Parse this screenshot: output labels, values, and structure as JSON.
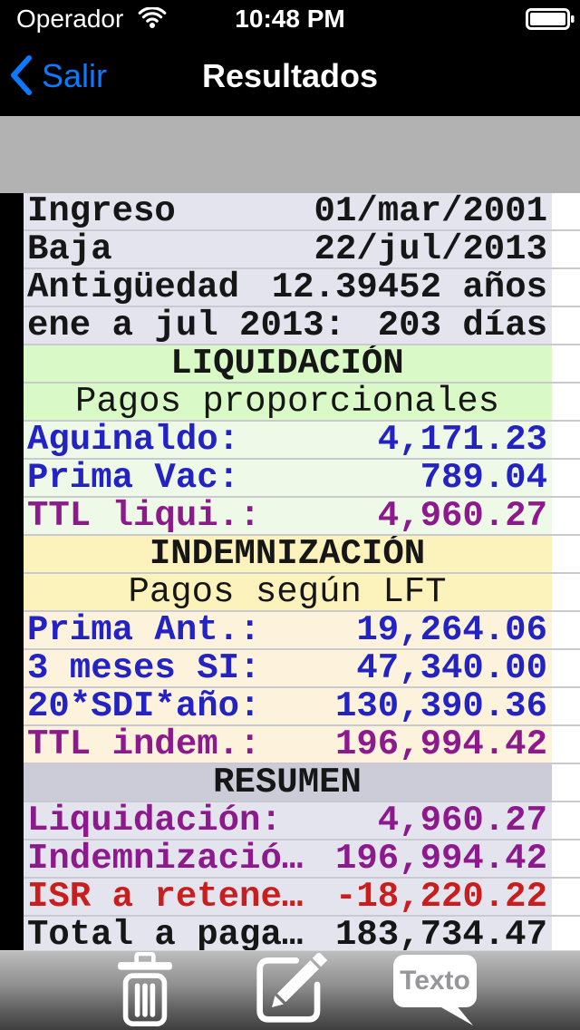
{
  "status_bar": {
    "carrier": "Operador",
    "time": "10:48 PM"
  },
  "nav_bar": {
    "back_label": "Salir",
    "title": "Resultados"
  },
  "toolbar": {
    "texto_label": "Texto"
  },
  "colors": {
    "nav_accent": "#0b7aff",
    "banner_gray": "#b2b2b2",
    "separator": "#c9c9d2",
    "text": {
      "black": "#161616",
      "blue": "#2323c3",
      "purple": "#8c1a8c",
      "red": "#c81e1e"
    },
    "themes": {
      "lavender": "#e4e4ef",
      "gray_header": "#ccccd8",
      "green_header": "#d9f9c6",
      "green": "#eff9e7",
      "yellow_header": "#fcf2bb",
      "cream": "#fdf2dc"
    }
  },
  "table": {
    "rows": [
      {
        "type": "data",
        "label": "Ingreso",
        "value": "01/mar/2001",
        "theme": "lavender",
        "color": "black"
      },
      {
        "type": "data",
        "label": "Baja",
        "value": "22/jul/2013",
        "theme": "lavender",
        "color": "black"
      },
      {
        "type": "data",
        "label": "Antigüedad",
        "value": "12.39452 años",
        "theme": "lavender",
        "color": "black"
      },
      {
        "type": "data",
        "label": "ene a jul 2013:",
        "value": "203 días",
        "theme": "lavender",
        "color": "black"
      },
      {
        "type": "header",
        "text": "LIQUIDACIÓN",
        "theme": "green_header"
      },
      {
        "type": "subheader",
        "text": "Pagos proporcionales",
        "theme": "green_header"
      },
      {
        "type": "data",
        "label": "Aguinaldo:",
        "value": "4,171.23",
        "theme": "green",
        "color": "blue"
      },
      {
        "type": "data",
        "label": "Prima Vac:",
        "value": "789.04",
        "theme": "green",
        "color": "blue"
      },
      {
        "type": "data",
        "label": "TTL liqui.:",
        "value": "4,960.27",
        "theme": "green",
        "color": "purple"
      },
      {
        "type": "header",
        "text": "INDEMNIZACIÓN",
        "theme": "yellow_header"
      },
      {
        "type": "subheader",
        "text": "Pagos según LFT",
        "theme": "yellow_header"
      },
      {
        "type": "data",
        "label": "Prima Ant.:",
        "value": "19,264.06",
        "theme": "cream",
        "color": "blue"
      },
      {
        "type": "data",
        "label": "3 meses SI:",
        "value": "47,340.00",
        "theme": "cream",
        "color": "blue"
      },
      {
        "type": "data",
        "label": "20*SDI*año:",
        "value": "130,390.36",
        "theme": "cream",
        "color": "blue"
      },
      {
        "type": "data",
        "label": "TTL indem.:",
        "value": "196,994.42",
        "theme": "cream",
        "color": "purple"
      },
      {
        "type": "header",
        "text": "RESUMEN",
        "theme": "gray_header"
      },
      {
        "type": "data",
        "label": "Liquidación:",
        "value": "4,960.27",
        "theme": "lavender",
        "color": "purple"
      },
      {
        "type": "data",
        "label": "Indemnizació…",
        "value": "196,994.42",
        "theme": "lavender",
        "color": "purple"
      },
      {
        "type": "data",
        "label": "ISR a retene…",
        "value": "-18,220.22",
        "theme": "lavender",
        "color": "red"
      },
      {
        "type": "data",
        "label": "Total a paga…",
        "value": "183,734.47",
        "theme": "lavender",
        "color": "black"
      }
    ]
  }
}
